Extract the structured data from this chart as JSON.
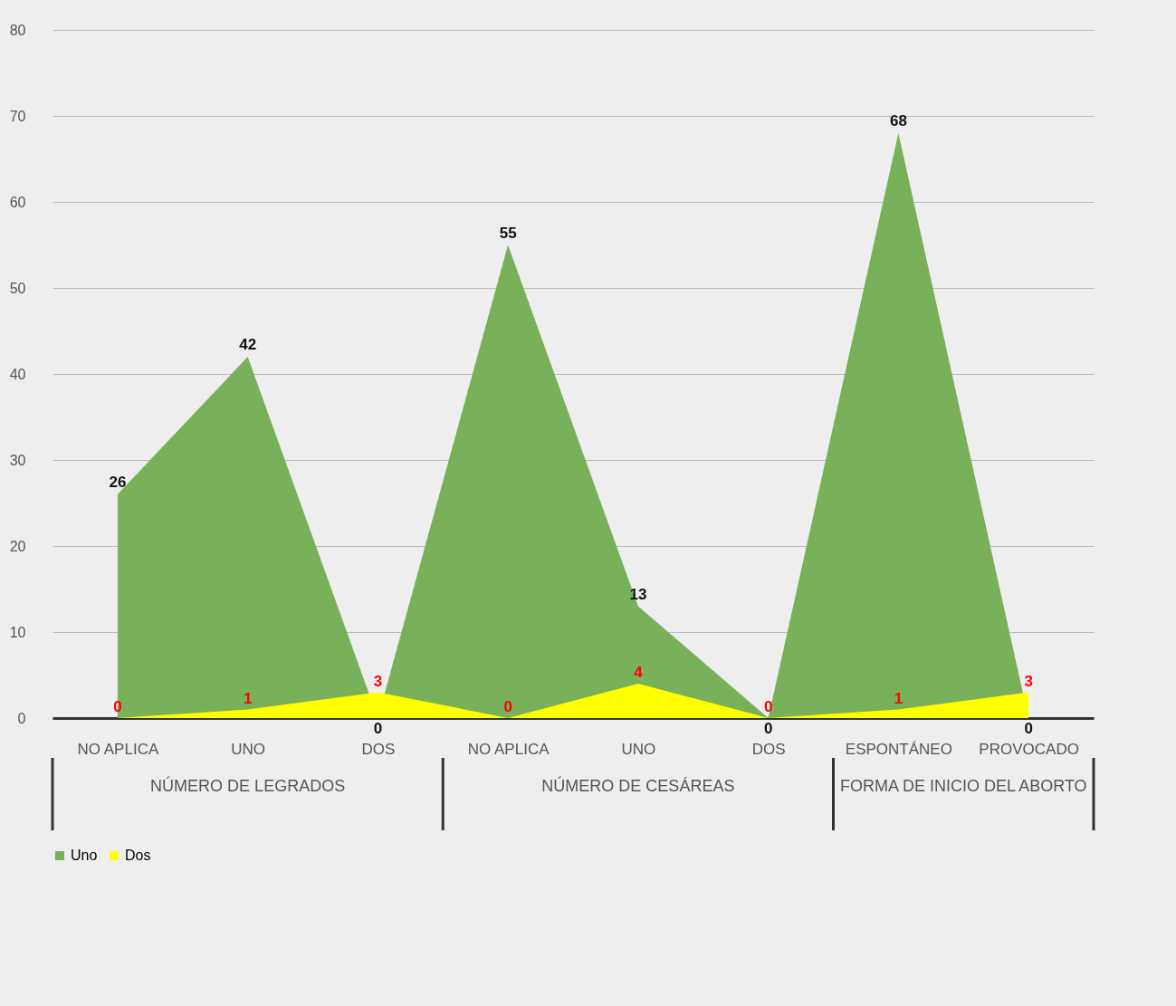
{
  "chart_data": {
    "type": "area",
    "categories": [
      "NO APLICA",
      "UNO",
      "DOS",
      "NO APLICA",
      "UNO",
      "DOS",
      "ESPONTÁNEO",
      "PROVOCADO"
    ],
    "series": [
      {
        "name": "Uno",
        "color": "#78b159",
        "values": [
          26,
          42,
          0,
          55,
          13,
          0,
          68,
          0
        ]
      },
      {
        "name": "Dos",
        "color": "#ffff00",
        "values": [
          0,
          1,
          3,
          0,
          4,
          0,
          1,
          3
        ]
      }
    ],
    "annotations": [
      "NÚMERO DE LEGRADOS",
      "NÚMERO DE CESÁREAS",
      "FORMA DE INICIO DEL ABORTO"
    ],
    "ylim": [
      0,
      80
    ],
    "yticks": [
      0,
      10,
      20,
      30,
      40,
      50,
      60,
      70,
      80
    ],
    "grid": "y",
    "legend": "bottom",
    "data_labels": true
  }
}
